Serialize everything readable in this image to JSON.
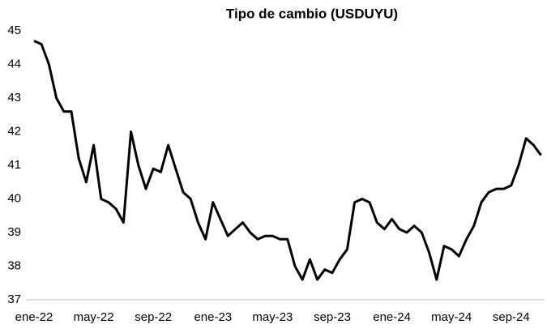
{
  "chart_data": {
    "type": "line",
    "title": "Tipo de cambio (USDUYU)",
    "categories": [
      "ene-22",
      null,
      null,
      null,
      null,
      null,
      null,
      null,
      "may-22",
      null,
      null,
      null,
      null,
      null,
      null,
      null,
      "sep-22",
      null,
      null,
      null,
      null,
      null,
      null,
      null,
      "ene-23",
      null,
      null,
      null,
      null,
      null,
      null,
      null,
      "may-23",
      null,
      null,
      null,
      null,
      null,
      null,
      null,
      "sep-23",
      null,
      null,
      null,
      null,
      null,
      null,
      null,
      "ene-24",
      null,
      null,
      null,
      null,
      null,
      null,
      null,
      "may-24",
      null,
      null,
      null,
      null,
      null,
      null,
      null,
      "sep-24",
      null,
      null,
      null,
      null
    ],
    "values": [
      44.7,
      44.6,
      44.0,
      43.0,
      42.6,
      42.6,
      41.2,
      40.5,
      41.6,
      40.0,
      39.9,
      39.7,
      39.3,
      42.0,
      41.0,
      40.3,
      40.9,
      40.8,
      41.6,
      40.9,
      40.2,
      40.0,
      39.3,
      38.8,
      39.9,
      39.4,
      38.9,
      39.1,
      39.3,
      39.0,
      38.8,
      38.9,
      38.9,
      38.8,
      38.8,
      38.0,
      37.6,
      38.2,
      37.6,
      37.9,
      37.8,
      38.2,
      38.5,
      39.9,
      40.0,
      39.9,
      39.3,
      39.1,
      39.4,
      39.1,
      39.0,
      39.2,
      39.0,
      38.4,
      37.6,
      38.6,
      38.5,
      38.3,
      38.8,
      39.2,
      39.9,
      40.2,
      40.3,
      40.3,
      40.4,
      41.0,
      41.8,
      41.6,
      41.3
    ],
    "color": "#000000",
    "ylim": [
      37,
      45
    ],
    "yticks": [
      37,
      38,
      39,
      40,
      41,
      42,
      43,
      44,
      45
    ],
    "grid": false
  }
}
